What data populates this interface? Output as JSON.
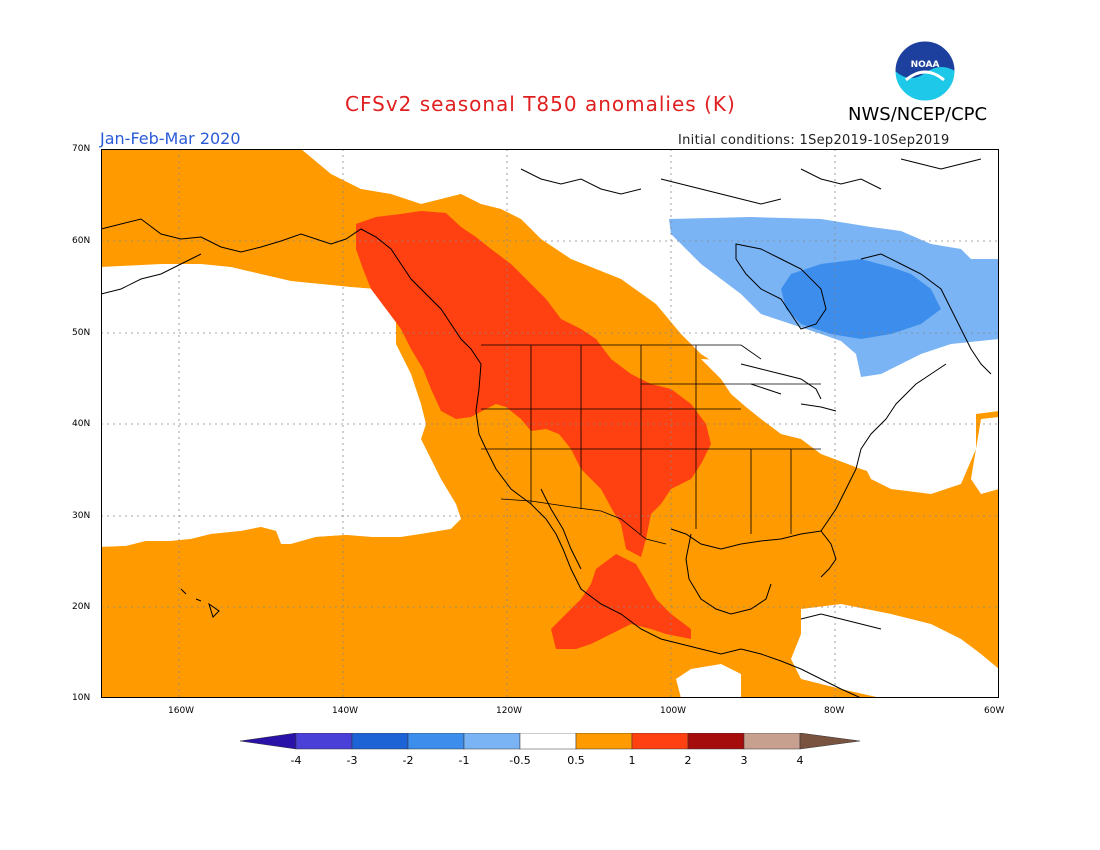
{
  "header": {
    "title": "CFSv2 seasonal T850 anomalies (K)",
    "agency": "NWS/NCEP/CPC",
    "logo_text": "NOAA",
    "period": "Jan-Feb-Mar 2020",
    "initial_conditions": "Initial conditions: 1Sep2019-10Sep2019"
  },
  "map": {
    "lat_labels": [
      "70N",
      "60N",
      "50N",
      "40N",
      "30N",
      "20N",
      "10N"
    ],
    "lon_labels": [
      "160W",
      "140W",
      "120W",
      "100W",
      "80W",
      "60W"
    ],
    "extent": {
      "lon_min": -172,
      "lon_max": -60,
      "lat_min": 10,
      "lat_max": 70
    },
    "regions": [
      {
        "name": "warm-anomaly-broad",
        "category": "0.5 to 1",
        "color": "#ff9a00"
      },
      {
        "name": "warm-anomaly-strong-north",
        "category": "1 to 2",
        "color": "#ff4010"
      },
      {
        "name": "warm-anomaly-strong-mexico",
        "category": "1 to 2",
        "color": "#ff4010"
      },
      {
        "name": "cold-anomaly-canada-outer",
        "category": "-1 to -0.5",
        "color": "#7ab4f5"
      },
      {
        "name": "cold-anomaly-canada-inner",
        "category": "-2 to -1",
        "color": "#3d8eec"
      }
    ]
  },
  "colorbar": {
    "labels": [
      "-4",
      "-3",
      "-2",
      "-1",
      "-0.5",
      "0.5",
      "1",
      "2",
      "3",
      "4"
    ],
    "colors": [
      "#2a12a8",
      "#4a3fd6",
      "#1e63d6",
      "#3d8eec",
      "#7ab4f5",
      "#ffffff",
      "#ff9a00",
      "#ff4010",
      "#a50d0d",
      "#c8a090",
      "#7a5240"
    ]
  }
}
